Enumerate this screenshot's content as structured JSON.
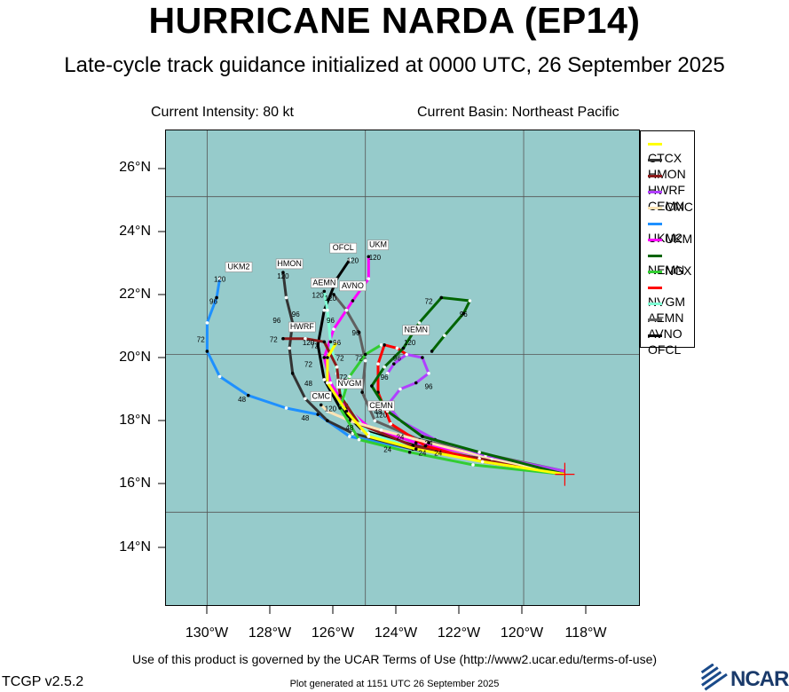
{
  "header": {
    "title": "HURRICANE NARDA (EP14)",
    "subtitle": "Late-cycle track guidance initialized at 0000 UTC, 26 September 2025",
    "current_intensity": "Current Intensity: 80 kt",
    "current_basin": "Current Basin: Northeast Pacific"
  },
  "axes": {
    "lat_labels": [
      "26°N",
      "24°N",
      "22°N",
      "20°N",
      "18°N",
      "16°N",
      "14°N"
    ],
    "lon_labels": [
      "130°W",
      "128°W",
      "126°W",
      "124°W",
      "122°W",
      "120°W",
      "118°W"
    ]
  },
  "map": {
    "lon_range": [
      -131.3,
      -116.3
    ],
    "lat_range": [
      12.0,
      27.1
    ],
    "water_color": "#96cbcb",
    "grid_lines_lon": [
      -130,
      -125,
      -120
    ],
    "grid_lines_lat": [
      25,
      20,
      15
    ],
    "storm_position": {
      "lon": -118.7,
      "lat": 16.2
    }
  },
  "legend": [
    {
      "name": "CTCX",
      "color": "#ffff00"
    },
    {
      "name": "HMON",
      "color": "#333333"
    },
    {
      "name": "HWRF",
      "color": "#8b1a1a"
    },
    {
      "name": "CEMN",
      "color": "#b040ff"
    },
    {
      "name": "CMC",
      "color": "#ffe4b5"
    },
    {
      "name": "UKM2",
      "color": "#1e90ff"
    },
    {
      "name": "UKM",
      "color": "#ff00ff"
    },
    {
      "name": "NEMN",
      "color": "#006400"
    },
    {
      "name": "NGX",
      "color": "#32cd32"
    },
    {
      "name": "NVGM",
      "color": "#ff0000"
    },
    {
      "name": "AEMN",
      "color": "#7fffd4"
    },
    {
      "name": "AVNO",
      "color": "#606060"
    },
    {
      "name": "OFCL",
      "color": "#000000"
    }
  ],
  "tracks": [
    {
      "name": "UKM2",
      "color": "#1e90ff",
      "label_pos": [
        -129.0,
        22.7
      ],
      "pts": [
        [
          -118.7,
          16.2
        ],
        [
          -121.5,
          16.7
        ],
        [
          -123.5,
          17.0
        ],
        [
          -125.5,
          17.4
        ],
        [
          -126.5,
          18.1
        ],
        [
          -127.5,
          18.3
        ],
        [
          -128.7,
          18.7
        ],
        [
          -129.6,
          19.3
        ],
        [
          -130.0,
          20.1
        ],
        [
          -130.0,
          21.0
        ],
        [
          -129.7,
          21.8
        ],
        [
          -129.6,
          22.4
        ]
      ]
    },
    {
      "name": "HMON",
      "color": "#333333",
      "label_pos": [
        -127.4,
        22.7
      ],
      "pts": [
        [
          -118.7,
          16.3
        ],
        [
          -121.3,
          16.7
        ],
        [
          -123.5,
          17.0
        ],
        [
          -125.4,
          17.5
        ],
        [
          -126.2,
          17.9
        ],
        [
          -126.9,
          18.6
        ],
        [
          -127.3,
          19.4
        ],
        [
          -127.4,
          20.2
        ],
        [
          -127.3,
          21.0
        ],
        [
          -127.5,
          21.8
        ],
        [
          -127.6,
          22.6
        ]
      ]
    },
    {
      "name": "OFCL",
      "color": "#000000",
      "label_pos": [
        -125.7,
        23.2
      ],
      "pts": [
        [
          -118.7,
          16.2
        ],
        [
          -121.2,
          16.6
        ],
        [
          -123.4,
          17.1
        ],
        [
          -125.1,
          17.6
        ],
        [
          -125.8,
          18.3
        ],
        [
          -126.3,
          19.2
        ],
        [
          -126.5,
          20.3
        ],
        [
          -126.3,
          21.4
        ],
        [
          -125.9,
          22.4
        ],
        [
          -125.5,
          23.0
        ]
      ]
    },
    {
      "name": "UKM",
      "color": "#ff00ff",
      "label_pos": [
        -124.6,
        23.3
      ],
      "pts": [
        [
          -118.7,
          16.3
        ],
        [
          -121.4,
          16.8
        ],
        [
          -123.4,
          17.2
        ],
        [
          -124.9,
          17.7
        ],
        [
          -125.6,
          18.3
        ],
        [
          -126.1,
          19.1
        ],
        [
          -126.3,
          19.9
        ],
        [
          -126.0,
          20.8
        ],
        [
          -125.4,
          21.7
        ],
        [
          -124.9,
          22.4
        ],
        [
          -124.9,
          23.1
        ]
      ]
    },
    {
      "name": "AEMN",
      "color": "#7fffd4",
      "label_pos": [
        -126.0,
        22.1
      ],
      "pts": [
        [
          -118.7,
          16.2
        ],
        [
          -121.3,
          16.6
        ],
        [
          -123.3,
          17.0
        ],
        [
          -124.9,
          17.5
        ],
        [
          -125.6,
          18.4
        ],
        [
          -125.9,
          19.4
        ],
        [
          -126.1,
          20.4
        ],
        [
          -126.2,
          21.4
        ],
        [
          -126.3,
          22.0
        ]
      ]
    },
    {
      "name": "AVNO",
      "color": "#606060",
      "label_pos": [
        -125.2,
        22.0
      ],
      "pts": [
        [
          -118.7,
          16.3
        ],
        [
          -121.5,
          16.9
        ],
        [
          -123.3,
          17.3
        ],
        [
          -124.7,
          17.9
        ],
        [
          -125.1,
          18.8
        ],
        [
          -125.0,
          19.8
        ],
        [
          -125.2,
          20.7
        ],
        [
          -125.6,
          21.4
        ],
        [
          -126.0,
          21.9
        ]
      ]
    },
    {
      "name": "HWRF",
      "color": "#8b1a1a",
      "label_pos": [
        -127.0,
        20.8
      ],
      "pts": [
        [
          -118.7,
          16.2
        ],
        [
          -121.4,
          16.7
        ],
        [
          -123.5,
          17.1
        ],
        [
          -125.2,
          17.8
        ],
        [
          -125.8,
          18.7
        ],
        [
          -125.9,
          19.6
        ],
        [
          -126.3,
          20.4
        ],
        [
          -126.9,
          20.5
        ],
        [
          -127.6,
          20.5
        ]
      ]
    },
    {
      "name": "NVGM",
      "color": "#ff0000",
      "label_pos": [
        -125.5,
        19.0
      ],
      "pts": [
        [
          -118.7,
          16.2
        ],
        [
          -121.3,
          16.6
        ],
        [
          -123.1,
          17.1
        ],
        [
          -124.2,
          17.8
        ],
        [
          -124.6,
          18.8
        ],
        [
          -124.6,
          19.7
        ],
        [
          -124.4,
          20.3
        ],
        [
          -124.0,
          20.2
        ],
        [
          -123.7,
          20.0
        ]
      ]
    },
    {
      "name": "CMC",
      "color": "#ffe4b5",
      "label_pos": [
        -126.4,
        18.6
      ],
      "pts": [
        [
          -118.7,
          16.2
        ],
        [
          -121.0,
          16.7
        ],
        [
          -123.0,
          17.2
        ],
        [
          -124.5,
          17.6
        ],
        [
          -125.5,
          17.9
        ],
        [
          -126.2,
          18.2
        ],
        [
          -126.4,
          18.4
        ]
      ]
    },
    {
      "name": "CEMN",
      "color": "#b040ff",
      "label_pos": [
        -124.5,
        18.3
      ],
      "pts": [
        [
          -118.7,
          16.3
        ],
        [
          -121.2,
          16.8
        ],
        [
          -122.8,
          17.3
        ],
        [
          -123.9,
          17.9
        ],
        [
          -124.3,
          18.4
        ],
        [
          -123.9,
          18.9
        ],
        [
          -123.4,
          19.1
        ],
        [
          -123.0,
          19.4
        ],
        [
          -123.2,
          19.9
        ],
        [
          -123.7,
          20.0
        ],
        [
          -124.1,
          19.7
        ],
        [
          -124.3,
          19.4
        ]
      ]
    },
    {
      "name": "NEMN",
      "color": "#006400",
      "label_pos": [
        -123.4,
        20.7
      ],
      "pts": [
        [
          -118.7,
          16.2
        ],
        [
          -121.4,
          16.9
        ],
        [
          -123.2,
          17.4
        ],
        [
          -124.3,
          18.2
        ],
        [
          -124.8,
          19.0
        ],
        [
          -124.4,
          19.6
        ],
        [
          -123.8,
          20.2
        ],
        [
          -123.3,
          21.0
        ],
        [
          -122.6,
          21.8
        ],
        [
          -121.7,
          21.7
        ],
        [
          -121.9,
          21.3
        ],
        [
          -122.5,
          20.6
        ],
        [
          -122.9,
          20.1
        ]
      ]
    },
    {
      "name": "NGX",
      "color": "#32cd32",
      "label_pos": [
        -124.0,
        19.4
      ],
      "pts": [
        [
          -118.7,
          16.2
        ],
        [
          -121.6,
          16.5
        ],
        [
          -123.6,
          16.9
        ],
        [
          -125.2,
          17.3
        ],
        [
          -125.8,
          18.3
        ],
        [
          -125.5,
          19.3
        ],
        [
          -125.0,
          20.0
        ],
        [
          -124.5,
          20.3
        ]
      ]
    },
    {
      "name": "CTCX",
      "color": "#ffff00",
      "label_pos": [
        -125.5,
        20.0
      ],
      "pts": [
        [
          -118.7,
          16.2
        ],
        [
          -121.3,
          16.6
        ],
        [
          -123.4,
          17.0
        ],
        [
          -124.9,
          17.4
        ],
        [
          -125.6,
          18.2
        ],
        [
          -126.2,
          19.1
        ],
        [
          -126.2,
          19.9
        ],
        [
          -125.9,
          20.4
        ]
      ]
    }
  ],
  "track_labels": [
    {
      "text": "UKM2",
      "lon": -129.0,
      "lat": 22.7,
      "boxed": true
    },
    {
      "text": "HMON",
      "lon": -127.4,
      "lat": 22.8,
      "boxed": true
    },
    {
      "text": "OFCL",
      "lon": -125.7,
      "lat": 23.3,
      "boxed": true
    },
    {
      "text": "UKM",
      "lon": -124.6,
      "lat": 23.4,
      "boxed": true
    },
    {
      "text": "AEMN",
      "lon": -126.3,
      "lat": 22.2,
      "boxed": true
    },
    {
      "text": "AVNO",
      "lon": -125.4,
      "lat": 22.1,
      "boxed": true
    },
    {
      "text": "HWRF",
      "lon": -127.0,
      "lat": 20.8,
      "boxed": true
    },
    {
      "text": "NEMN",
      "lon": -123.4,
      "lat": 20.7,
      "boxed": true
    },
    {
      "text": "NVGM",
      "lon": -125.5,
      "lat": 19.0,
      "boxed": true
    },
    {
      "text": "CMC",
      "lon": -126.4,
      "lat": 18.6,
      "boxed": true
    },
    {
      "text": "CEMN",
      "lon": -124.5,
      "lat": 18.3,
      "boxed": true
    },
    {
      "text": "120",
      "lon": -129.6,
      "lat": 22.3
    },
    {
      "text": "120",
      "lon": -127.6,
      "lat": 22.4
    },
    {
      "text": "120",
      "lon": -125.4,
      "lat": 22.9
    },
    {
      "text": "120",
      "lon": -124.7,
      "lat": 23.0
    },
    {
      "text": "120",
      "lon": -126.5,
      "lat": 21.8
    },
    {
      "text": "120",
      "lon": -126.1,
      "lat": 21.7
    },
    {
      "text": "120",
      "lon": -126.8,
      "lat": 20.3
    },
    {
      "text": "120",
      "lon": -123.6,
      "lat": 20.3
    },
    {
      "text": "120",
      "lon": -124.5,
      "lat": 18.0
    },
    {
      "text": "120",
      "lon": -126.1,
      "lat": 18.2
    },
    {
      "text": "96",
      "lon": -129.8,
      "lat": 21.6
    },
    {
      "text": "96",
      "lon": -127.2,
      "lat": 21.2
    },
    {
      "text": "96",
      "lon": -127.8,
      "lat": 21.0
    },
    {
      "text": "96",
      "lon": -126.1,
      "lat": 21.0
    },
    {
      "text": "96",
      "lon": -125.3,
      "lat": 20.6
    },
    {
      "text": "96",
      "lon": -125.9,
      "lat": 20.3
    },
    {
      "text": "96",
      "lon": -124.0,
      "lat": 19.8
    },
    {
      "text": "96",
      "lon": -124.4,
      "lat": 19.2
    },
    {
      "text": "96",
      "lon": -123.0,
      "lat": 18.9
    },
    {
      "text": "96",
      "lon": -121.9,
      "lat": 21.2
    },
    {
      "text": "72",
      "lon": -130.2,
      "lat": 20.4
    },
    {
      "text": "72",
      "lon": -127.9,
      "lat": 20.4
    },
    {
      "text": "72",
      "lon": -126.6,
      "lat": 20.2
    },
    {
      "text": "72",
      "lon": -126.8,
      "lat": 19.6
    },
    {
      "text": "72",
      "lon": -125.8,
      "lat": 19.8
    },
    {
      "text": "72",
      "lon": -125.2,
      "lat": 19.8
    },
    {
      "text": "72",
      "lon": -125.7,
      "lat": 19.2
    },
    {
      "text": "72",
      "lon": -123.0,
      "lat": 21.6
    },
    {
      "text": "48",
      "lon": -128.9,
      "lat": 18.5
    },
    {
      "text": "48",
      "lon": -126.8,
      "lat": 19.0
    },
    {
      "text": "48",
      "lon": -126.9,
      "lat": 17.9
    },
    {
      "text": "48",
      "lon": -125.5,
      "lat": 17.6
    },
    {
      "text": "48",
      "lon": -124.6,
      "lat": 18.1
    },
    {
      "text": "24",
      "lon": -123.9,
      "lat": 17.3
    },
    {
      "text": "24",
      "lon": -123.0,
      "lat": 17.1
    },
    {
      "text": "24",
      "lon": -124.3,
      "lat": 16.9
    },
    {
      "text": "24",
      "lon": -123.2,
      "lat": 16.8
    },
    {
      "text": "24",
      "lon": -122.7,
      "lat": 16.8
    }
  ],
  "footer": {
    "terms": "Use of this product is governed by the UCAR Terms of Use (http://www2.ucar.edu/terms-of-use)",
    "version": "TCGP v2.5.2",
    "generated": "Plot generated at 1151 UTC   26 September 2025",
    "logo_text": "NCAR"
  }
}
